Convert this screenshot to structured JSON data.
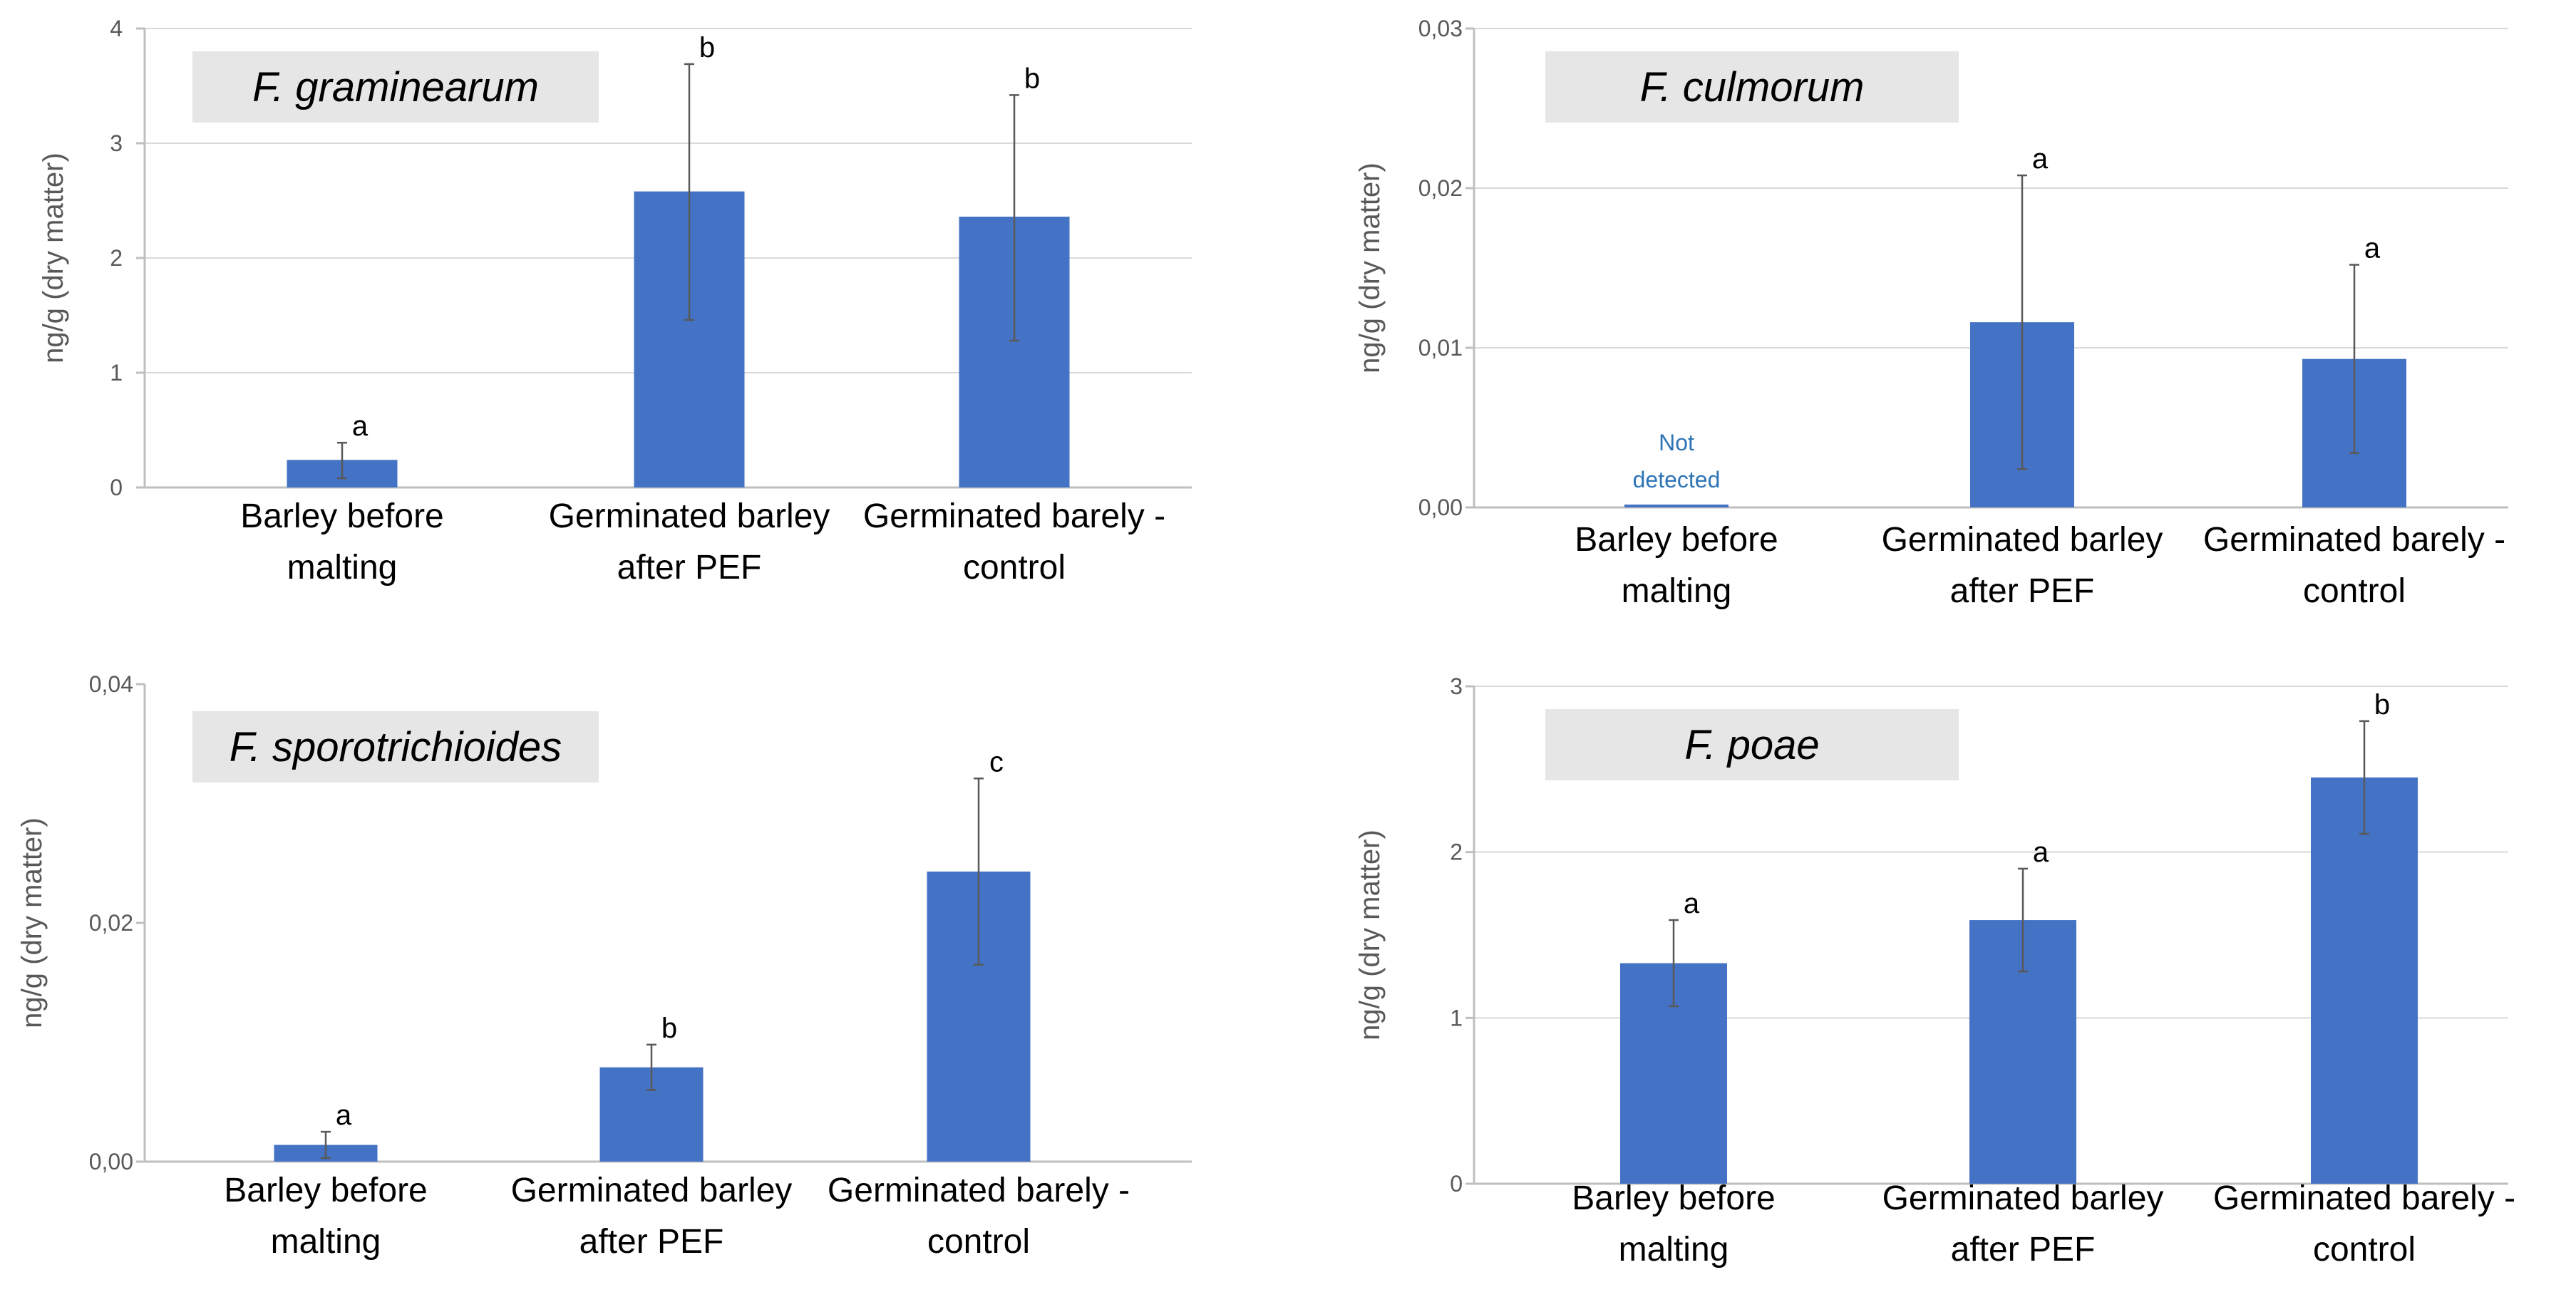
{
  "figure": {
    "colors": {
      "bar": "#4472C4",
      "gridline": "#D9D9D9",
      "axis_line": "#BFBFBF",
      "tick_text": "#595959",
      "category_text": "#000000",
      "title_box": "#E7E6E6",
      "error_bar": "#595959",
      "note_text": "#2E75B6"
    }
  },
  "chart_data": [
    {
      "type": "bar",
      "title": "F. graminearum",
      "ylabel": "ng/g (dry matter)",
      "xlabel": "",
      "categories": [
        [
          "Barley before",
          "malting"
        ],
        [
          "Germinated barley",
          "after PEF"
        ],
        [
          "Germinated barely -",
          "control"
        ]
      ],
      "values": [
        0.24,
        2.58,
        2.36
      ],
      "error_high": [
        0.39,
        3.69,
        3.42
      ],
      "error_low": [
        0.08,
        1.46,
        1.28
      ],
      "significance": [
        "a",
        "b",
        "b"
      ],
      "ylim": [
        0,
        4
      ],
      "yticks": [
        0,
        1,
        2,
        3,
        4
      ],
      "ytick_labels": [
        "0",
        "1",
        "2",
        "3",
        "4"
      ],
      "gridlines": true,
      "notes": [
        null,
        null,
        null
      ]
    },
    {
      "type": "bar",
      "title": "F. culmorum",
      "ylabel": "ng/g (dry matter)",
      "xlabel": "",
      "categories": [
        [
          "Barley before",
          "malting"
        ],
        [
          "Germinated barley",
          "after PEF"
        ],
        [
          "Germinated barely -",
          "control"
        ]
      ],
      "values": [
        0,
        0.0116,
        0.0093
      ],
      "error_high": [
        null,
        0.0208,
        0.0152
      ],
      "error_low": [
        null,
        0.0024,
        0.0034
      ],
      "significance": [
        null,
        "a",
        "a"
      ],
      "ylim": [
        0,
        0.03
      ],
      "yticks": [
        0,
        0.01,
        0.02,
        0.03
      ],
      "ytick_labels": [
        "0,00",
        "0,01",
        "0,02",
        "0,03"
      ],
      "gridlines": true,
      "notes": [
        [
          "Not",
          "detected"
        ],
        null,
        null
      ]
    },
    {
      "type": "bar",
      "title": "F. sporotrichioides",
      "ylabel": "ng/g (dry matter)",
      "xlabel": "",
      "categories": [
        [
          "Barley before",
          "malting"
        ],
        [
          "Germinated barley",
          "after PEF"
        ],
        [
          "Germinated barely -",
          "control"
        ]
      ],
      "values": [
        0.0014,
        0.0079,
        0.0243
      ],
      "error_high": [
        0.0025,
        0.0098,
        0.0321
      ],
      "error_low": [
        0.0003,
        0.006,
        0.0165
      ],
      "significance": [
        "a",
        "b",
        "c"
      ],
      "ylim": [
        0,
        0.04
      ],
      "yticks": [
        0,
        0.02,
        0.04
      ],
      "ytick_labels": [
        "0,00",
        "0,02",
        "0,04"
      ],
      "gridlines": false,
      "notes": [
        null,
        null,
        null
      ]
    },
    {
      "type": "bar",
      "title": "F. poae",
      "ylabel": "ng/g (dry matter)",
      "xlabel": "",
      "categories": [
        [
          "Barley before",
          "malting"
        ],
        [
          "Germinated barley",
          "after PEF"
        ],
        [
          "Germinated barely -",
          "control"
        ]
      ],
      "values": [
        1.33,
        1.59,
        2.45
      ],
      "error_high": [
        1.59,
        1.9,
        2.79
      ],
      "error_low": [
        1.07,
        1.28,
        2.11
      ],
      "significance": [
        "a",
        "a",
        "b"
      ],
      "ylim": [
        0,
        3
      ],
      "yticks": [
        0,
        1,
        2,
        3
      ],
      "ytick_labels": [
        "0",
        "1",
        "2",
        "3"
      ],
      "gridlines": true,
      "notes": [
        null,
        null,
        null
      ]
    }
  ]
}
